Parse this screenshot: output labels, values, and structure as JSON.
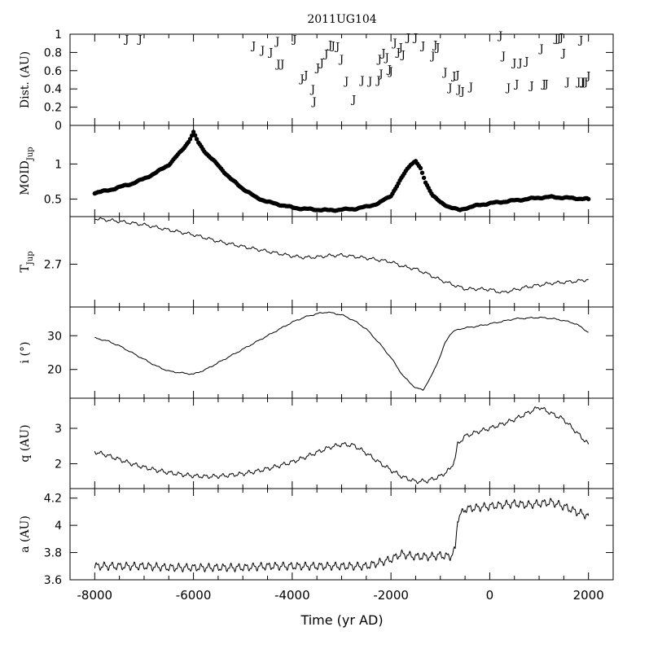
{
  "title": "2011UG104",
  "x_axis": {
    "label": "Time (yr AD)",
    "range": [
      -8500,
      2500
    ],
    "ticks": [
      -8000,
      -6000,
      -4000,
      -2000,
      0,
      2000
    ]
  },
  "colors": {
    "ink": "#000000",
    "background": "#ffffff"
  },
  "chart_data": [
    {
      "id": "dist",
      "type": "scatter",
      "marker": "letter J",
      "marker_label": "J",
      "ylabel": "Dist. (AU)",
      "ylim": [
        0,
        1
      ],
      "yticks": [
        "0",
        "0.2",
        "0.4",
        "0.6",
        "0.8",
        "1"
      ],
      "series": [
        {
          "x": [
            -7350,
            -7080,
            -4780,
            -4600,
            -4430,
            -4300,
            -3950,
            -4280,
            -4200,
            -3800,
            -3720,
            -3580,
            -3550,
            -3480,
            -3400,
            -3310,
            -3230,
            -3170,
            -3080,
            -3000,
            -2900,
            -2750,
            -2580,
            -2420,
            -2250,
            -2230,
            -2200,
            -2150,
            -2080,
            -2030,
            -2000,
            -1920,
            -1850,
            -1800,
            -1750,
            -1650,
            -1500,
            -1350,
            -1150,
            -1100,
            -1050,
            -900,
            -800,
            -720,
            -650,
            -620,
            -550,
            -380,
            220,
            280,
            380,
            500,
            550,
            620,
            750,
            850,
            1050,
            1100,
            1150,
            1350,
            1400,
            1450,
            1500,
            1580,
            1800,
            1850,
            1880,
            1900,
            1950,
            2000
          ],
          "y": [
            0.95,
            0.95,
            0.88,
            0.83,
            0.81,
            0.93,
            0.95,
            0.68,
            0.68,
            0.52,
            0.56,
            0.4,
            0.27,
            0.64,
            0.69,
            0.79,
            0.89,
            0.88,
            0.87,
            0.73,
            0.49,
            0.29,
            0.5,
            0.49,
            0.5,
            0.73,
            0.57,
            0.8,
            0.75,
            0.62,
            0.6,
            0.91,
            0.81,
            0.86,
            0.78,
            0.97,
            0.97,
            0.88,
            0.77,
            0.89,
            0.86,
            0.59,
            0.42,
            0.55,
            0.56,
            0.4,
            0.38,
            0.43,
            0.99,
            0.77,
            0.42,
            0.69,
            0.46,
            0.69,
            0.71,
            0.44,
            0.85,
            0.46,
            0.46,
            0.96,
            0.96,
            0.97,
            0.8,
            0.48,
            0.48,
            0.94,
            0.48,
            0.48,
            0.48,
            0.55
          ]
        }
      ]
    },
    {
      "id": "moid",
      "type": "scatter",
      "ylabel": "MOID",
      "ylabel_sub": "Jup",
      "ylim": [
        0.25,
        1.55
      ],
      "yticks": [
        "0.5",
        "1"
      ],
      "series": [
        {
          "x": [
            -8000,
            -7750,
            -7500,
            -7250,
            -7000,
            -6750,
            -6500,
            -6250,
            -6100,
            -6000,
            -5900,
            -5750,
            -5500,
            -5250,
            -5000,
            -4750,
            -4500,
            -4250,
            -4000,
            -3750,
            -3500,
            -3250,
            -3000,
            -2750,
            -2500,
            -2250,
            -2000,
            -1850,
            -1700,
            -1600,
            -1500,
            -1400,
            -1300,
            -1150,
            -1000,
            -850,
            -700,
            -600,
            -500,
            -250,
            0,
            250,
            500,
            750,
            1000,
            1250,
            1500,
            1750,
            2000
          ],
          "y": [
            0.59,
            0.62,
            0.67,
            0.72,
            0.79,
            0.88,
            0.99,
            1.18,
            1.32,
            1.45,
            1.3,
            1.16,
            0.98,
            0.79,
            0.65,
            0.53,
            0.46,
            0.42,
            0.38,
            0.36,
            0.35,
            0.34,
            0.35,
            0.36,
            0.39,
            0.44,
            0.55,
            0.72,
            0.9,
            1.0,
            1.04,
            0.93,
            0.74,
            0.55,
            0.45,
            0.4,
            0.36,
            0.34,
            0.37,
            0.41,
            0.44,
            0.46,
            0.48,
            0.5,
            0.52,
            0.53,
            0.52,
            0.51,
            0.5
          ]
        }
      ]
    },
    {
      "id": "tjup",
      "type": "line",
      "ylabel": "T",
      "ylabel_sub": "Jup",
      "ylim": [
        2.61,
        2.8
      ],
      "yticks": [
        "2.7"
      ],
      "series": [
        {
          "x": [
            -8000,
            -7500,
            -7000,
            -6500,
            -6000,
            -5500,
            -5000,
            -4500,
            -4000,
            -3750,
            -3500,
            -3250,
            -3000,
            -2750,
            -2500,
            -2250,
            -2000,
            -1750,
            -1500,
            -1250,
            -1000,
            -750,
            -500,
            -250,
            0,
            250,
            500,
            750,
            1000,
            1250,
            1500,
            1750,
            2000
          ],
          "y": [
            2.796,
            2.79,
            2.783,
            2.772,
            2.762,
            2.748,
            2.737,
            2.727,
            2.717,
            2.714,
            2.715,
            2.718,
            2.719,
            2.716,
            2.713,
            2.709,
            2.705,
            2.695,
            2.69,
            2.679,
            2.667,
            2.657,
            2.648,
            2.648,
            2.647,
            2.64,
            2.646,
            2.652,
            2.656,
            2.66,
            2.662,
            2.664,
            2.668
          ]
        }
      ]
    },
    {
      "id": "incl",
      "type": "line",
      "ylabel": "i (°)",
      "ylim": [
        11.5,
        38.5
      ],
      "yticks": [
        "20",
        "30"
      ],
      "series": [
        {
          "x": [
            -8000,
            -7750,
            -7500,
            -7250,
            -7000,
            -6750,
            -6500,
            -6250,
            -6000,
            -5750,
            -5500,
            -5250,
            -5000,
            -4750,
            -4500,
            -4250,
            -4000,
            -3750,
            -3500,
            -3300,
            -3000,
            -2750,
            -2500,
            -2250,
            -2000,
            -1750,
            -1500,
            -1350,
            -1200,
            -1000,
            -900,
            -800,
            -700,
            -600,
            -500,
            -250,
            0,
            250,
            500,
            750,
            1000,
            1250,
            1500,
            1750,
            2000
          ],
          "y": [
            29.3,
            28.5,
            27.0,
            25.0,
            23.0,
            21.0,
            19.5,
            19.0,
            18.6,
            20.0,
            22.0,
            24.0,
            26.0,
            28.0,
            30.0,
            32.0,
            34.0,
            35.5,
            36.5,
            37.0,
            36.2,
            34.5,
            32.0,
            28.0,
            23.5,
            18.0,
            14.5,
            14.0,
            17.5,
            24.0,
            28.0,
            30.5,
            31.5,
            32.0,
            32.3,
            32.8,
            33.5,
            34.2,
            35.0,
            35.2,
            35.4,
            35.1,
            34.5,
            33.5,
            31.0
          ]
        }
      ]
    },
    {
      "id": "q",
      "type": "line",
      "ylabel": "q (AU)",
      "ylim": [
        1.3,
        3.85
      ],
      "yticks": [
        "2",
        "3"
      ],
      "series": [
        {
          "x": [
            -8000,
            -7750,
            -7500,
            -7250,
            -7000,
            -6750,
            -6500,
            -6250,
            -6000,
            -5750,
            -5500,
            -5250,
            -5000,
            -4750,
            -4500,
            -4250,
            -4000,
            -3750,
            -3500,
            -3250,
            -3000,
            -2750,
            -2500,
            -2250,
            -2000,
            -1750,
            -1500,
            -1250,
            -1000,
            -800,
            -700,
            -650,
            -500,
            -250,
            0,
            250,
            500,
            750,
            1000,
            1250,
            1500,
            1750,
            2000
          ],
          "y": [
            2.34,
            2.24,
            2.12,
            2.0,
            1.9,
            1.82,
            1.75,
            1.7,
            1.66,
            1.64,
            1.65,
            1.68,
            1.72,
            1.78,
            1.86,
            1.95,
            2.05,
            2.18,
            2.32,
            2.46,
            2.55,
            2.52,
            2.3,
            2.05,
            1.82,
            1.62,
            1.5,
            1.52,
            1.65,
            1.85,
            2.15,
            2.55,
            2.78,
            2.9,
            3.0,
            3.12,
            3.25,
            3.42,
            3.6,
            3.42,
            3.25,
            2.9,
            2.55
          ]
        }
      ]
    },
    {
      "id": "a",
      "type": "line",
      "ylabel": "a (AU)",
      "ylim": [
        3.6,
        4.27
      ],
      "yticks": [
        "3.6",
        "3.8",
        "4",
        "4.2"
      ],
      "series": [
        {
          "x": [
            -8000,
            -7500,
            -7000,
            -6500,
            -6000,
            -5500,
            -5000,
            -4500,
            -4000,
            -3500,
            -3000,
            -2500,
            -2000,
            -1800,
            -1500,
            -1200,
            -1000,
            -800,
            -700,
            -650,
            -500,
            -250,
            0,
            250,
            500,
            750,
            1000,
            1250,
            1500,
            1750,
            2000
          ],
          "y": [
            3.7,
            3.7,
            3.7,
            3.69,
            3.69,
            3.69,
            3.69,
            3.7,
            3.7,
            3.7,
            3.7,
            3.7,
            3.75,
            3.79,
            3.77,
            3.77,
            3.78,
            3.77,
            3.82,
            4.05,
            4.12,
            4.13,
            4.14,
            4.15,
            4.16,
            4.15,
            4.16,
            4.17,
            4.14,
            4.1,
            4.07
          ]
        }
      ]
    }
  ]
}
